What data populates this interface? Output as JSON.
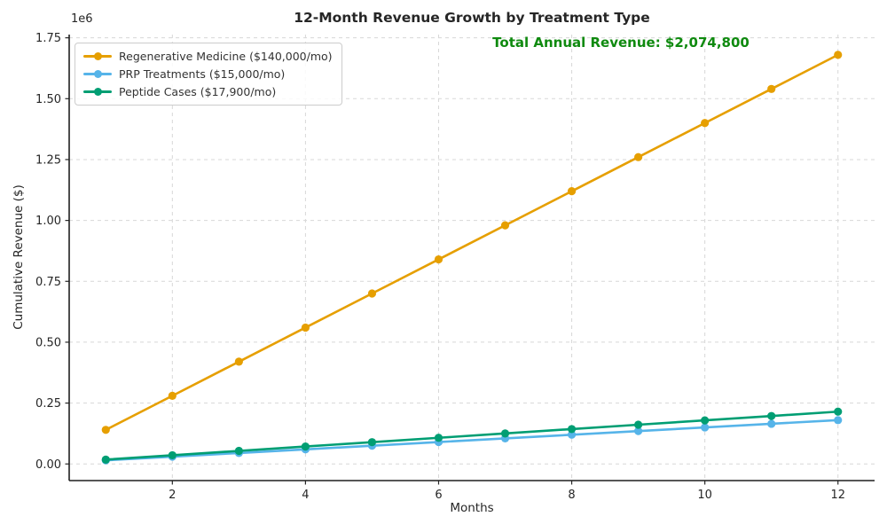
{
  "chart_data": {
    "type": "line",
    "title": "12-Month Revenue Growth by Treatment Type",
    "xlabel": "Months",
    "ylabel": "Cumulative Revenue ($)",
    "y_offset_text": "1e6",
    "annotation": {
      "text": "Total Annual Revenue: $2,074,800",
      "total_value": 2074800,
      "color": "#0f8a0f"
    },
    "x": [
      1,
      2,
      3,
      4,
      5,
      6,
      7,
      8,
      9,
      10,
      11,
      12
    ],
    "series": [
      {
        "name": "regenerative-medicine",
        "label": "Regenerative Medicine ($140,000/mo)",
        "monthly_rate": 140000,
        "color": "#E69F00",
        "values": [
          140000,
          280000,
          420000,
          560000,
          700000,
          840000,
          980000,
          1120000,
          1260000,
          1400000,
          1540000,
          1680000
        ]
      },
      {
        "name": "prp-treatments",
        "label": "PRP Treatments ($15,000/mo)",
        "monthly_rate": 15000,
        "color": "#56B4E9",
        "values": [
          15000,
          30000,
          45000,
          60000,
          75000,
          90000,
          105000,
          120000,
          135000,
          150000,
          165000,
          180000
        ]
      },
      {
        "name": "peptide-cases",
        "label": "Peptide Cases ($17,900/mo)",
        "monthly_rate": 17900,
        "color": "#009E73",
        "values": [
          17900,
          35800,
          53700,
          71600,
          89500,
          107400,
          125300,
          143200,
          161100,
          179000,
          196900,
          214800
        ]
      }
    ],
    "xticks": [
      2,
      4,
      6,
      8,
      10,
      12
    ],
    "yticks": {
      "values": [
        0,
        250000,
        500000,
        750000,
        1000000,
        1250000,
        1500000,
        1750000
      ],
      "labels": [
        "0.00",
        "0.25",
        "0.50",
        "0.75",
        "1.00",
        "1.25",
        "1.50",
        "1.75"
      ]
    },
    "xlim": [
      0.45,
      12.55
    ],
    "ylim": [
      -68250,
      1763250
    ],
    "grid": true,
    "legend_position": "upper left"
  }
}
